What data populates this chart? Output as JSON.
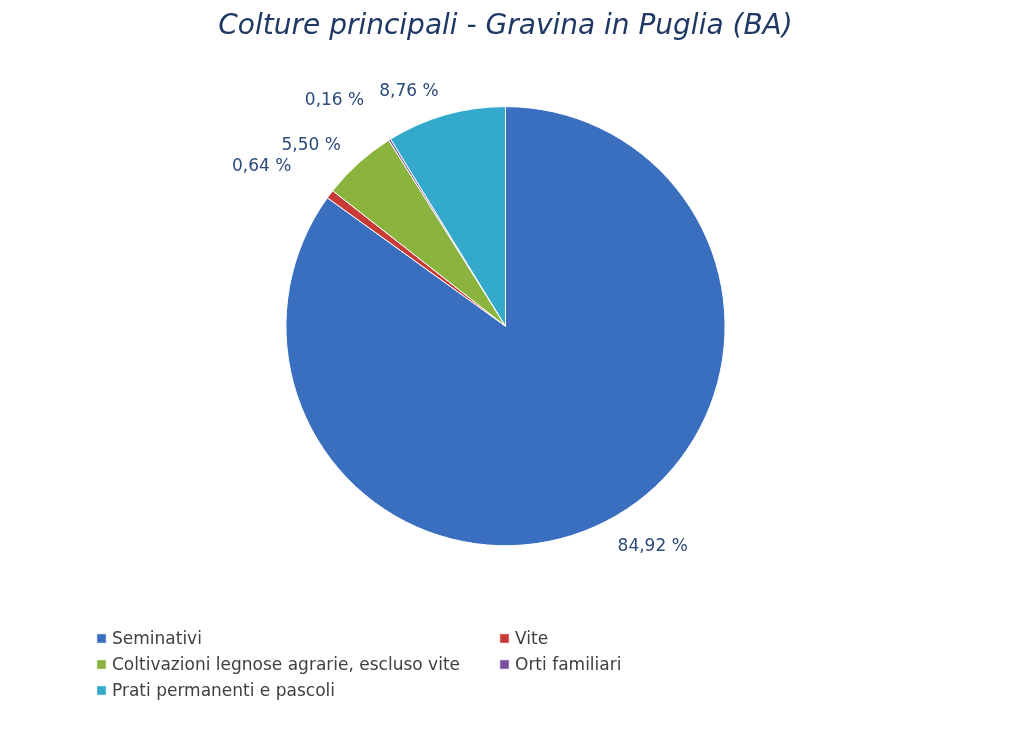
{
  "chart_data": {
    "type": "pie",
    "title": "Colture principali - Gravina in Puglia (BA)",
    "categories": [
      "Seminativi",
      "Vite",
      "Coltivazioni legnose agrarie, escluso vite",
      "Orti familiari",
      "Prati permanenti e pascoli"
    ],
    "values": [
      84.92,
      0.64,
      5.5,
      0.16,
      8.76
    ],
    "colors": [
      "#3a6fbf",
      "#c83a35",
      "#8bb43e",
      "#7b4f9d",
      "#33a9cc"
    ],
    "value_labels": [
      "84,92 %",
      "0,64 %",
      "5,50 %",
      "0,16 %",
      "8,76 %"
    ],
    "legend": "bottom"
  }
}
